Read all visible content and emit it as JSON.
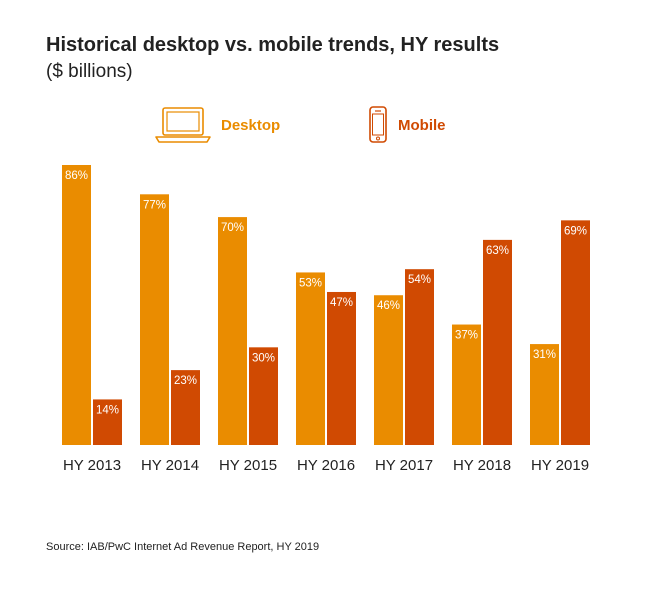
{
  "title": "Historical desktop vs. mobile trends, HY results",
  "subtitle": "($ billions)",
  "legend": {
    "desktop": {
      "label": "Desktop",
      "icon": "laptop-icon",
      "color": "#EA8C00"
    },
    "mobile": {
      "label": "Mobile",
      "icon": "smartphone-icon",
      "color": "#D04A02"
    }
  },
  "source": "Source: IAB/PwC Internet Ad Revenue Report, HY 2019",
  "chart_data": {
    "type": "bar",
    "title": "Historical desktop vs. mobile trends, HY results",
    "subtitle": "($ billions)",
    "categories": [
      "HY 2013",
      "HY 2014",
      "HY 2015",
      "HY 2016",
      "HY 2017",
      "HY 2018",
      "HY 2019"
    ],
    "series": [
      {
        "name": "Desktop",
        "color": "#EA8C00",
        "values": [
          86,
          77,
          70,
          53,
          46,
          37,
          31
        ],
        "labels": [
          "86%",
          "77%",
          "70%",
          "53%",
          "46%",
          "37%",
          "31%"
        ]
      },
      {
        "name": "Mobile",
        "color": "#D04A02",
        "values": [
          14,
          23,
          30,
          47,
          54,
          63,
          69
        ],
        "labels": [
          "14%",
          "23%",
          "30%",
          "47%",
          "54%",
          "63%",
          "69%"
        ]
      }
    ],
    "ylim": [
      0,
      86
    ],
    "grid": false,
    "legend_position": "top"
  }
}
